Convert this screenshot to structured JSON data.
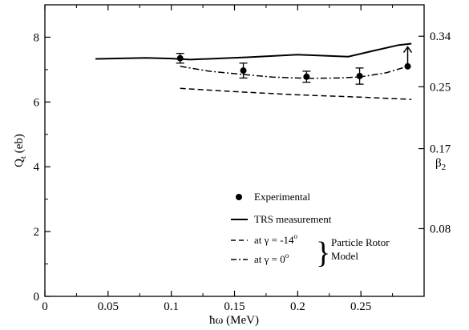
{
  "chart_data": {
    "type": "line",
    "xlabel": "ħω (MeV)",
    "ylabel": "Q_t (eb)",
    "y2label": "β_2",
    "xlim": [
      0,
      0.3
    ],
    "ylim": [
      0,
      9
    ],
    "x_ticks": [
      "0",
      "0.05",
      "0.1",
      "0.15",
      "0.2",
      "0.25"
    ],
    "x_tick_values": [
      0,
      0.05,
      0.1,
      0.15,
      0.2,
      0.25
    ],
    "y_ticks": [
      "0",
      "2",
      "4",
      "6",
      "8"
    ],
    "y_tick_values": [
      0,
      2,
      4,
      6,
      8
    ],
    "y2_ticks": [
      "0.08",
      "0.17",
      "0.25",
      "0.34"
    ],
    "y2_tick_values": [
      2.09,
      4.56,
      6.47,
      8.03
    ],
    "grid": false,
    "legend_position": "lower-right",
    "series": [
      {
        "name": "Experimental",
        "style": "points",
        "points": [
          {
            "x": 0.107,
            "y": 7.35,
            "err": 0.15
          },
          {
            "x": 0.157,
            "y": 6.97,
            "err": 0.23
          },
          {
            "x": 0.207,
            "y": 6.78,
            "err": 0.17
          },
          {
            "x": 0.249,
            "y": 6.8,
            "err": 0.25
          },
          {
            "x": 0.287,
            "y": 7.1,
            "lower_limit": true
          }
        ]
      },
      {
        "name": "TRS measurement",
        "style": "solid",
        "x": [
          0.04,
          0.08,
          0.1,
          0.115,
          0.16,
          0.2,
          0.24,
          0.26,
          0.28,
          0.29
        ],
        "y": [
          7.33,
          7.36,
          7.34,
          7.31,
          7.38,
          7.46,
          7.4,
          7.58,
          7.76,
          7.8
        ]
      },
      {
        "name": "at γ = -14°",
        "style": "dashed",
        "x": [
          0.107,
          0.15,
          0.2,
          0.25,
          0.29
        ],
        "y": [
          6.42,
          6.32,
          6.22,
          6.15,
          6.08
        ]
      },
      {
        "name": "at γ = 0°",
        "style": "dashdot",
        "x": [
          0.107,
          0.13,
          0.157,
          0.18,
          0.207,
          0.23,
          0.249,
          0.27,
          0.287
        ],
        "y": [
          7.1,
          6.95,
          6.85,
          6.77,
          6.73,
          6.74,
          6.77,
          6.9,
          7.1
        ]
      }
    ],
    "legend": {
      "experimental": "Experimental",
      "trs": "TRS measurement",
      "gamma_neg14": "at γ = -14",
      "gamma_0": "at γ = 0",
      "degree_symbol": "o",
      "particle_rotor_line1": "Particle Rotor",
      "particle_rotor_line2": "Model"
    },
    "colors": {
      "ink": "#000000",
      "background": "#ffffff"
    }
  }
}
